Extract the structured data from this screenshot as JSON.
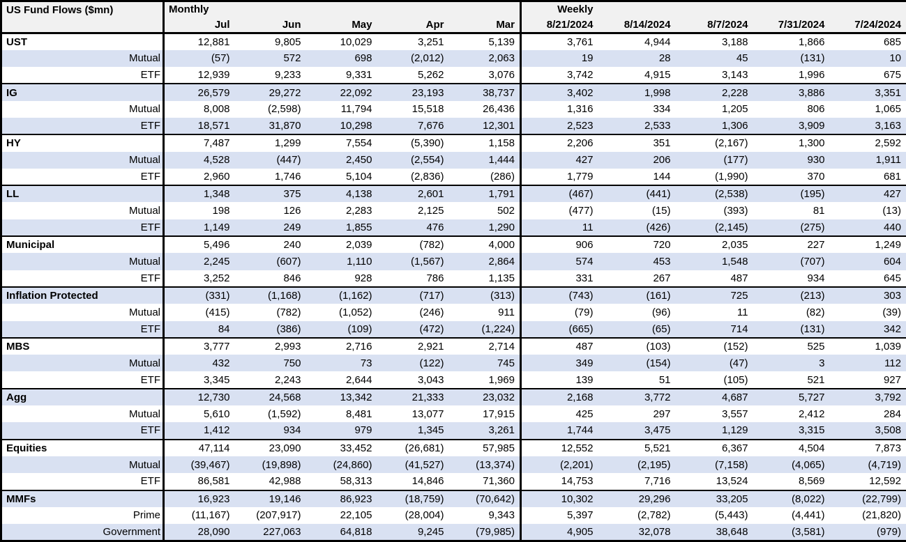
{
  "table": {
    "title": "US Fund Flows ($mn)",
    "monthly_label": "Monthly",
    "weekly_label": "Weekly",
    "monthly_columns": [
      "Jul",
      "Jun",
      "May",
      "Apr",
      "Mar"
    ],
    "weekly_columns": [
      "8/21/2024",
      "8/14/2024",
      "8/7/2024",
      "7/31/2024",
      "7/24/2024"
    ],
    "colors": {
      "stripe": "#D9E1F2",
      "header_bg": "#F1F1F1",
      "border": "#000000"
    },
    "groups": [
      {
        "rows": [
          {
            "label": "UST",
            "monthly": [
              "12,881",
              "9,805",
              "10,029",
              "3,251",
              "5,139"
            ],
            "weekly": [
              "3,761",
              "4,944",
              "3,188",
              "1,866",
              "685"
            ]
          },
          {
            "label": "Mutual",
            "monthly": [
              "(57)",
              "572",
              "698",
              "(2,012)",
              "2,063"
            ],
            "weekly": [
              "19",
              "28",
              "45",
              "(131)",
              "10"
            ]
          },
          {
            "label": "ETF",
            "monthly": [
              "12,939",
              "9,233",
              "9,331",
              "5,262",
              "3,076"
            ],
            "weekly": [
              "3,742",
              "4,915",
              "3,143",
              "1,996",
              "675"
            ]
          }
        ]
      },
      {
        "rows": [
          {
            "label": "IG",
            "monthly": [
              "26,579",
              "29,272",
              "22,092",
              "23,193",
              "38,737"
            ],
            "weekly": [
              "3,402",
              "1,998",
              "2,228",
              "3,886",
              "3,351"
            ]
          },
          {
            "label": "Mutual",
            "monthly": [
              "8,008",
              "(2,598)",
              "11,794",
              "15,518",
              "26,436"
            ],
            "weekly": [
              "1,316",
              "334",
              "1,205",
              "806",
              "1,065"
            ]
          },
          {
            "label": "ETF",
            "monthly": [
              "18,571",
              "31,870",
              "10,298",
              "7,676",
              "12,301"
            ],
            "weekly": [
              "2,523",
              "2,533",
              "1,306",
              "3,909",
              "3,163"
            ]
          }
        ]
      },
      {
        "rows": [
          {
            "label": "HY",
            "monthly": [
              "7,487",
              "1,299",
              "7,554",
              "(5,390)",
              "1,158"
            ],
            "weekly": [
              "2,206",
              "351",
              "(2,167)",
              "1,300",
              "2,592"
            ]
          },
          {
            "label": "Mutual",
            "monthly": [
              "4,528",
              "(447)",
              "2,450",
              "(2,554)",
              "1,444"
            ],
            "weekly": [
              "427",
              "206",
              "(177)",
              "930",
              "1,911"
            ]
          },
          {
            "label": "ETF",
            "monthly": [
              "2,960",
              "1,746",
              "5,104",
              "(2,836)",
              "(286)"
            ],
            "weekly": [
              "1,779",
              "144",
              "(1,990)",
              "370",
              "681"
            ]
          }
        ]
      },
      {
        "rows": [
          {
            "label": "LL",
            "monthly": [
              "1,348",
              "375",
              "4,138",
              "2,601",
              "1,791"
            ],
            "weekly": [
              "(467)",
              "(441)",
              "(2,538)",
              "(195)",
              "427"
            ]
          },
          {
            "label": "Mutual",
            "monthly": [
              "198",
              "126",
              "2,283",
              "2,125",
              "502"
            ],
            "weekly": [
              "(477)",
              "(15)",
              "(393)",
              "81",
              "(13)"
            ]
          },
          {
            "label": "ETF",
            "monthly": [
              "1,149",
              "249",
              "1,855",
              "476",
              "1,290"
            ],
            "weekly": [
              "11",
              "(426)",
              "(2,145)",
              "(275)",
              "440"
            ]
          }
        ]
      },
      {
        "rows": [
          {
            "label": "Municipal",
            "monthly": [
              "5,496",
              "240",
              "2,039",
              "(782)",
              "4,000"
            ],
            "weekly": [
              "906",
              "720",
              "2,035",
              "227",
              "1,249"
            ]
          },
          {
            "label": "Mutual",
            "monthly": [
              "2,245",
              "(607)",
              "1,110",
              "(1,567)",
              "2,864"
            ],
            "weekly": [
              "574",
              "453",
              "1,548",
              "(707)",
              "604"
            ]
          },
          {
            "label": "ETF",
            "monthly": [
              "3,252",
              "846",
              "928",
              "786",
              "1,135"
            ],
            "weekly": [
              "331",
              "267",
              "487",
              "934",
              "645"
            ]
          }
        ]
      },
      {
        "rows": [
          {
            "label": "Inflation Protected",
            "monthly": [
              "(331)",
              "(1,168)",
              "(1,162)",
              "(717)",
              "(313)"
            ],
            "weekly": [
              "(743)",
              "(161)",
              "725",
              "(213)",
              "303"
            ]
          },
          {
            "label": "Mutual",
            "monthly": [
              "(415)",
              "(782)",
              "(1,052)",
              "(246)",
              "911"
            ],
            "weekly": [
              "(79)",
              "(96)",
              "11",
              "(82)",
              "(39)"
            ]
          },
          {
            "label": "ETF",
            "monthly": [
              "84",
              "(386)",
              "(109)",
              "(472)",
              "(1,224)"
            ],
            "weekly": [
              "(665)",
              "(65)",
              "714",
              "(131)",
              "342"
            ]
          }
        ]
      },
      {
        "rows": [
          {
            "label": "MBS",
            "monthly": [
              "3,777",
              "2,993",
              "2,716",
              "2,921",
              "2,714"
            ],
            "weekly": [
              "487",
              "(103)",
              "(152)",
              "525",
              "1,039"
            ]
          },
          {
            "label": "Mutual",
            "monthly": [
              "432",
              "750",
              "73",
              "(122)",
              "745"
            ],
            "weekly": [
              "349",
              "(154)",
              "(47)",
              "3",
              "112"
            ]
          },
          {
            "label": "ETF",
            "monthly": [
              "3,345",
              "2,243",
              "2,644",
              "3,043",
              "1,969"
            ],
            "weekly": [
              "139",
              "51",
              "(105)",
              "521",
              "927"
            ]
          }
        ]
      },
      {
        "rows": [
          {
            "label": "Agg",
            "monthly": [
              "12,730",
              "24,568",
              "13,342",
              "21,333",
              "23,032"
            ],
            "weekly": [
              "2,168",
              "3,772",
              "4,687",
              "5,727",
              "3,792"
            ]
          },
          {
            "label": "Mutual",
            "monthly": [
              "5,610",
              "(1,592)",
              "8,481",
              "13,077",
              "17,915"
            ],
            "weekly": [
              "425",
              "297",
              "3,557",
              "2,412",
              "284"
            ]
          },
          {
            "label": "ETF",
            "monthly": [
              "1,412",
              "934",
              "979",
              "1,345",
              "3,261"
            ],
            "weekly": [
              "1,744",
              "3,475",
              "1,129",
              "3,315",
              "3,508"
            ]
          }
        ]
      },
      {
        "rows": [
          {
            "label": "Equities",
            "monthly": [
              "47,114",
              "23,090",
              "33,452",
              "(26,681)",
              "57,985"
            ],
            "weekly": [
              "12,552",
              "5,521",
              "6,367",
              "4,504",
              "7,873"
            ]
          },
          {
            "label": "Mutual",
            "monthly": [
              "(39,467)",
              "(19,898)",
              "(24,860)",
              "(41,527)",
              "(13,374)"
            ],
            "weekly": [
              "(2,201)",
              "(2,195)",
              "(7,158)",
              "(4,065)",
              "(4,719)"
            ]
          },
          {
            "label": "ETF",
            "monthly": [
              "86,581",
              "42,988",
              "58,313",
              "14,846",
              "71,360"
            ],
            "weekly": [
              "14,753",
              "7,716",
              "13,524",
              "8,569",
              "12,592"
            ]
          }
        ]
      },
      {
        "rows": [
          {
            "label": "MMFs",
            "monthly": [
              "16,923",
              "19,146",
              "86,923",
              "(18,759)",
              "(70,642)"
            ],
            "weekly": [
              "10,302",
              "29,296",
              "33,205",
              "(8,022)",
              "(22,799)"
            ]
          },
          {
            "label": "Prime",
            "monthly": [
              "(11,167)",
              "(207,917)",
              "22,105",
              "(28,004)",
              "9,343"
            ],
            "weekly": [
              "5,397",
              "(2,782)",
              "(5,443)",
              "(4,441)",
              "(21,820)"
            ]
          },
          {
            "label": "Government",
            "monthly": [
              "28,090",
              "227,063",
              "64,818",
              "9,245",
              "(79,985)"
            ],
            "weekly": [
              "4,905",
              "32,078",
              "38,648",
              "(3,581)",
              "(979)"
            ]
          }
        ]
      }
    ]
  }
}
